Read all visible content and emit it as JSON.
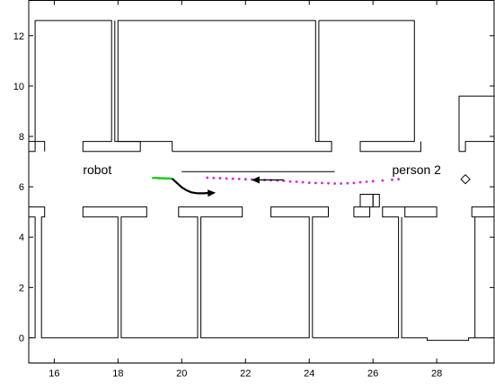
{
  "chart_data": {
    "type": "map",
    "title": "",
    "xlabel": "",
    "ylabel": "",
    "xlim": [
      15.2,
      29.8
    ],
    "ylim": [
      -1.0,
      13.4
    ],
    "grid": false,
    "legend": "none",
    "x_ticks": [
      16,
      18,
      20,
      22,
      24,
      26,
      28
    ],
    "y_ticks": [
      0,
      2,
      4,
      6,
      8,
      10,
      12
    ],
    "colors": {
      "walls": "#000000",
      "robot_history": "#22cc22",
      "person_history": "#dd22dd",
      "prediction": "#000000"
    },
    "annotations": [
      {
        "text": "robot",
        "x": 16.9,
        "y": 6.5
      },
      {
        "text": "person 2",
        "x": 26.6,
        "y": 6.5
      }
    ],
    "walls": [
      [
        [
          15.2,
          7.4
        ],
        [
          15.4,
          7.4
        ],
        [
          15.4,
          12.6
        ],
        [
          17.8,
          12.6
        ],
        [
          17.8,
          7.8
        ],
        [
          16.9,
          7.8
        ],
        [
          16.9,
          7.4
        ],
        [
          18.7,
          7.4
        ],
        [
          18.7,
          7.8
        ],
        [
          17.9,
          7.8
        ],
        [
          17.9,
          12.6
        ]
      ],
      [
        [
          15.2,
          7.8
        ],
        [
          15.7,
          7.8
        ],
        [
          15.7,
          7.4
        ]
      ],
      [
        [
          19.7,
          7.4
        ],
        [
          24.7,
          7.4
        ],
        [
          24.7,
          7.8
        ],
        [
          24.2,
          7.8
        ],
        [
          24.2,
          12.6
        ],
        [
          18.0,
          12.6
        ],
        [
          18.0,
          7.8
        ],
        [
          19.7,
          7.8
        ],
        [
          19.7,
          7.4
        ]
      ],
      [
        [
          24.3,
          12.6
        ],
        [
          27.3,
          12.6
        ],
        [
          27.3,
          7.8
        ],
        [
          25.6,
          7.8
        ],
        [
          25.6,
          7.4
        ],
        [
          27.5,
          7.4
        ],
        [
          27.5,
          7.8
        ]
      ],
      [
        [
          24.3,
          12.6
        ],
        [
          24.3,
          7.8
        ]
      ],
      [
        [
          28.7,
          7.4
        ],
        [
          28.7,
          9.6
        ],
        [
          29.8,
          9.6
        ]
      ],
      [
        [
          28.7,
          7.4
        ],
        [
          28.9,
          7.4
        ],
        [
          28.9,
          7.8
        ],
        [
          29.8,
          7.8
        ]
      ],
      [
        [
          15.2,
          4.8
        ],
        [
          15.4,
          4.8
        ],
        [
          15.4,
          0.0
        ],
        [
          15.2,
          0.0
        ]
      ],
      [
        [
          15.2,
          4.8
        ],
        [
          15.2,
          5.2
        ],
        [
          15.7,
          5.2
        ],
        [
          15.7,
          4.8
        ],
        [
          15.6,
          4.8
        ],
        [
          15.6,
          0.0
        ],
        [
          18.0,
          0.0
        ],
        [
          18.0,
          4.8
        ],
        [
          16.9,
          4.8
        ],
        [
          16.9,
          5.2
        ],
        [
          18.9,
          5.2
        ],
        [
          18.9,
          4.8
        ],
        [
          18.1,
          4.8
        ],
        [
          18.1,
          0.0
        ],
        [
          20.5,
          0.0
        ],
        [
          20.5,
          4.8
        ],
        [
          19.9,
          4.8
        ],
        [
          19.9,
          5.2
        ],
        [
          21.9,
          5.2
        ],
        [
          21.9,
          4.8
        ],
        [
          20.6,
          4.8
        ],
        [
          20.6,
          0.0
        ],
        [
          24.0,
          0.0
        ],
        [
          24.0,
          4.8
        ],
        [
          22.8,
          4.8
        ],
        [
          22.8,
          5.2
        ],
        [
          24.6,
          5.2
        ],
        [
          24.6,
          4.8
        ]
      ],
      [
        [
          24.1,
          0.0
        ],
        [
          24.1,
          4.8
        ],
        [
          24.6,
          4.8
        ]
      ],
      [
        [
          24.1,
          0.0
        ],
        [
          26.8,
          0.0
        ],
        [
          26.8,
          4.8
        ],
        [
          26.3,
          4.8
        ],
        [
          26.3,
          5.2
        ],
        [
          27.0,
          5.2
        ],
        [
          27.0,
          4.8
        ],
        [
          28.0,
          4.8
        ],
        [
          28.0,
          5.2
        ],
        [
          27.0,
          5.2
        ]
      ],
      [
        [
          25.4,
          4.8
        ],
        [
          25.4,
          5.2
        ],
        [
          26.2,
          5.2
        ],
        [
          26.2,
          5.7
        ],
        [
          26.0,
          5.7
        ],
        [
          26.0,
          5.2
        ],
        [
          26.2,
          5.2
        ]
      ],
      [
        [
          25.4,
          4.8
        ],
        [
          25.9,
          4.8
        ],
        [
          25.9,
          5.2
        ]
      ],
      [
        [
          26.0,
          5.7
        ],
        [
          26.0,
          5.2
        ]
      ],
      [
        [
          25.6,
          5.2
        ],
        [
          25.6,
          5.7
        ],
        [
          26.2,
          5.7
        ]
      ],
      [
        [
          26.9,
          4.8
        ],
        [
          26.9,
          0.0
        ],
        [
          27.7,
          0.0
        ],
        [
          27.7,
          -0.1
        ],
        [
          29.0,
          -0.1
        ],
        [
          29.0,
          0.0
        ],
        [
          29.8,
          0.0
        ]
      ],
      [
        [
          29.1,
          4.8
        ],
        [
          29.1,
          5.2
        ],
        [
          29.8,
          5.2
        ]
      ],
      [
        [
          29.1,
          4.8
        ],
        [
          29.8,
          4.8
        ]
      ],
      [
        [
          29.2,
          4.8
        ],
        [
          29.2,
          0.0
        ]
      ],
      [
        [
          28.7,
          7.8
        ],
        [
          28.7,
          9.6
        ]
      ],
      [
        [
          20.0,
          6.6
        ],
        [
          24.8,
          6.6
        ]
      ]
    ],
    "robot_history": {
      "x": [
        19.1,
        19.2,
        19.3,
        19.4,
        19.5,
        19.6,
        19.7
      ],
      "y": [
        6.35,
        6.35,
        6.34,
        6.34,
        6.33,
        6.33,
        6.32
      ]
    },
    "robot_prediction": {
      "x": [
        19.7,
        19.85,
        20.0,
        20.15,
        20.3,
        20.5,
        20.7,
        20.9
      ],
      "y": [
        6.32,
        6.15,
        5.98,
        5.86,
        5.78,
        5.74,
        5.74,
        5.76
      ]
    },
    "person_history": {
      "x": [
        26.8,
        26.6,
        26.3,
        26.0,
        25.8,
        25.6,
        25.4,
        25.2,
        25.0,
        24.8,
        24.6,
        24.4,
        24.2,
        24.0,
        23.8,
        23.6,
        23.4,
        23.2,
        23.0,
        22.8,
        22.6,
        22.4,
        22.2,
        22.0,
        21.8,
        21.6,
        21.4,
        21.2,
        21.0,
        20.8
      ],
      "y": [
        6.3,
        6.28,
        6.25,
        6.22,
        6.2,
        6.18,
        6.15,
        6.14,
        6.13,
        6.13,
        6.14,
        6.15,
        6.15,
        6.16,
        6.18,
        6.2,
        6.21,
        6.23,
        6.25,
        6.26,
        6.27,
        6.28,
        6.29,
        6.3,
        6.31,
        6.32,
        6.33,
        6.34,
        6.35,
        6.36
      ]
    },
    "person_prediction": {
      "x": [
        23.2,
        22.9,
        22.6,
        22.3
      ],
      "y": [
        6.27,
        6.27,
        6.27,
        6.27
      ]
    },
    "diamond_marker": {
      "x": 28.9,
      "y": 6.3
    }
  }
}
